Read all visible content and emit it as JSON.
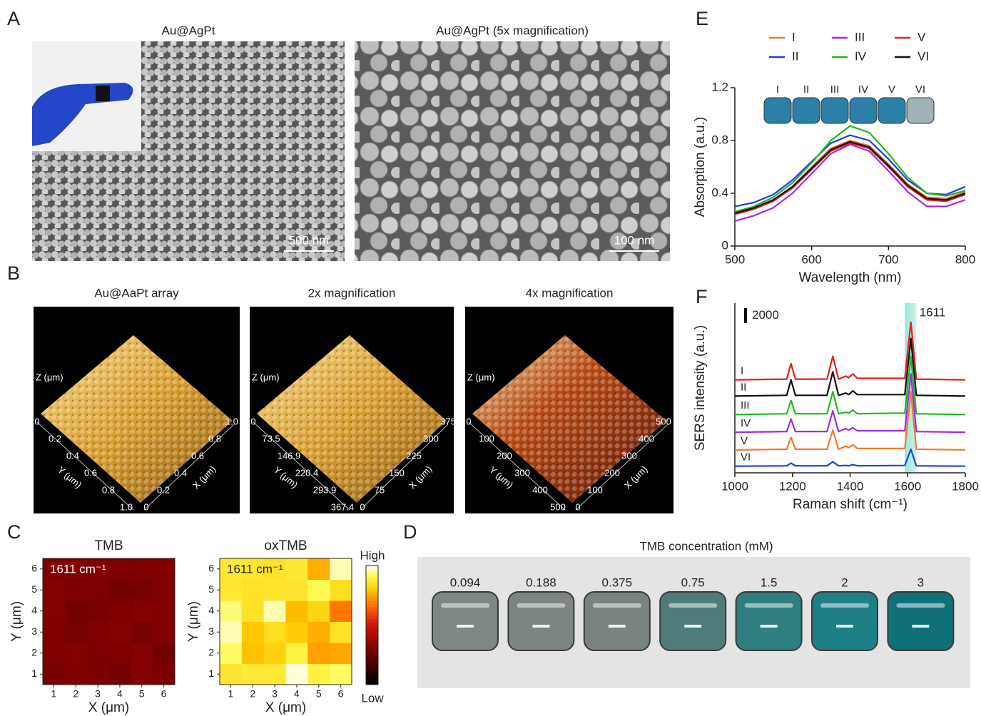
{
  "panels": {
    "A": {
      "label": "A",
      "images": [
        {
          "caption": "Au@AgPt",
          "scale_bar": "500 nm"
        },
        {
          "caption": "Au@AgPt (5x magnification)",
          "scale_bar": "100 nm"
        }
      ]
    },
    "B": {
      "label": "B",
      "images": [
        {
          "caption": "Au@AaPt array",
          "z_label": "Z (μm)",
          "y_label": "Y (μm)",
          "x_label": "X (μm)",
          "y_ticks": [
            "0",
            "0.2",
            "0.4",
            "0.6",
            "0.8",
            "1.0"
          ],
          "x_ticks": [
            "0",
            "0.2",
            "0.4",
            "0.6",
            "0.8",
            "1.0"
          ]
        },
        {
          "caption": "2x magnification",
          "z_label": "Z (μm)",
          "y_label": "Y (μm)",
          "x_label": "X (μm)",
          "y_ticks": [
            "0",
            "73.5",
            "146.9",
            "220.4",
            "293.9",
            "367.4"
          ],
          "x_ticks": [
            "0",
            "75",
            "150",
            "225",
            "300",
            "375"
          ]
        },
        {
          "caption": "4x magnification",
          "z_label": "Z (μm)",
          "y_label": "Y (μm)",
          "x_label": "X (μm)",
          "y_ticks": [
            "0",
            "100",
            "200",
            "300",
            "400",
            "500"
          ],
          "x_ticks": [
            "0",
            "100",
            "200",
            "300",
            "400",
            "500"
          ]
        }
      ]
    },
    "C": {
      "label": "C"
    },
    "D": {
      "label": "D",
      "title": "TMB concentration (mM)",
      "concentrations": [
        "0.094",
        "0.188",
        "0.375",
        "0.75",
        "1.5",
        "2",
        "3"
      ]
    },
    "E": {
      "label": "E"
    },
    "F": {
      "label": "F"
    }
  },
  "chart_data": [
    {
      "type": "line",
      "xlabel": "Wavelength (nm)",
      "ylabel": "Absorption (a.u.)",
      "x": [
        500,
        525,
        550,
        575,
        600,
        625,
        650,
        675,
        700,
        725,
        750,
        775,
        800
      ],
      "xlim": [
        500,
        800
      ],
      "xticks": [
        500,
        600,
        700,
        800
      ],
      "ylim": [
        0,
        1.2
      ],
      "yticks": [
        0,
        0.4,
        0.8,
        1.2
      ],
      "legend": "top",
      "series": [
        {
          "name": "I",
          "color": "#f47a2a",
          "values": [
            0.25,
            0.29,
            0.35,
            0.45,
            0.6,
            0.74,
            0.8,
            0.76,
            0.62,
            0.47,
            0.37,
            0.36,
            0.41
          ]
        },
        {
          "name": "II",
          "color": "#1f3fe0",
          "values": [
            0.3,
            0.33,
            0.39,
            0.5,
            0.64,
            0.78,
            0.84,
            0.8,
            0.66,
            0.5,
            0.4,
            0.39,
            0.45
          ]
        },
        {
          "name": "III",
          "color": "#a22be0",
          "values": [
            0.19,
            0.23,
            0.29,
            0.4,
            0.55,
            0.7,
            0.77,
            0.72,
            0.57,
            0.41,
            0.3,
            0.3,
            0.35
          ]
        },
        {
          "name": "IV",
          "color": "#1fba1f",
          "values": [
            0.26,
            0.3,
            0.37,
            0.48,
            0.63,
            0.8,
            0.91,
            0.86,
            0.7,
            0.52,
            0.4,
            0.38,
            0.42
          ]
        },
        {
          "name": "V",
          "color": "#e81e1e",
          "values": [
            0.24,
            0.28,
            0.34,
            0.44,
            0.58,
            0.72,
            0.78,
            0.74,
            0.6,
            0.45,
            0.35,
            0.34,
            0.39
          ]
        },
        {
          "name": "VI",
          "color": "#111111",
          "values": [
            0.25,
            0.29,
            0.35,
            0.45,
            0.59,
            0.73,
            0.79,
            0.75,
            0.61,
            0.46,
            0.36,
            0.35,
            0.4
          ]
        }
      ]
    },
    {
      "type": "line",
      "xlabel": "Raman shift (cm⁻¹)",
      "ylabel": "SERS intensity (a.u.)",
      "x": [
        1000,
        1180,
        1195,
        1210,
        1320,
        1340,
        1360,
        1385,
        1395,
        1410,
        1425,
        1590,
        1611,
        1630,
        1800
      ],
      "xlim": [
        1000,
        1800
      ],
      "xticks": [
        1000,
        1200,
        1400,
        1600,
        1800
      ],
      "ylim": [
        0,
        23000
      ],
      "scale_bar": 2000,
      "annotation": "1611",
      "highlight": [
        1590,
        1630
      ],
      "series": [
        {
          "name": "I",
          "color": "#e81e1e",
          "values": [
            12600,
            12700,
            14800,
            12700,
            12700,
            15800,
            12700,
            13100,
            12900,
            13400,
            12800,
            12800,
            20400,
            12700,
            12600
          ]
        },
        {
          "name": "II",
          "color": "#111111",
          "values": [
            10400,
            10500,
            12600,
            10500,
            10500,
            13700,
            10500,
            10800,
            10600,
            11100,
            10600,
            10600,
            18200,
            10500,
            10400
          ]
        },
        {
          "name": "III",
          "color": "#1fba1f",
          "values": [
            7900,
            8000,
            9800,
            8000,
            8000,
            11000,
            8000,
            8200,
            8100,
            8500,
            8000,
            8100,
            15800,
            8000,
            7900
          ]
        },
        {
          "name": "IV",
          "color": "#a22be0",
          "values": [
            5500,
            5600,
            7300,
            5600,
            5600,
            8400,
            5600,
            6000,
            5800,
            6100,
            5700,
            5700,
            13400,
            5600,
            5500
          ]
        },
        {
          "name": "V",
          "color": "#f47a2a",
          "values": [
            3100,
            3200,
            4800,
            3200,
            3200,
            5800,
            3200,
            3600,
            3400,
            3800,
            3300,
            3300,
            11000,
            3200,
            3100
          ]
        },
        {
          "name": "VI",
          "color": "#1f3fe0",
          "values": [
            900,
            950,
            1300,
            950,
            950,
            1500,
            950,
            1000,
            950,
            1100,
            950,
            1000,
            3200,
            950,
            900
          ]
        }
      ]
    },
    {
      "type": "heatmap",
      "title": "TMB",
      "annotation": "1611 cm⁻¹",
      "xlabel": "X (μm)",
      "ylabel": "Y (μm)",
      "xlim": [
        0.5,
        6.5
      ],
      "ylim": [
        0.5,
        6.5
      ],
      "xticks": [
        1,
        2,
        3,
        4,
        5,
        6
      ],
      "yticks": [
        1,
        2,
        3,
        4,
        5,
        6
      ],
      "z": [
        [
          0.28,
          0.3,
          0.29,
          0.27,
          0.31,
          0.29
        ],
        [
          0.3,
          0.31,
          0.29,
          0.3,
          0.31,
          0.27
        ],
        [
          0.3,
          0.28,
          0.3,
          0.31,
          0.28,
          0.3
        ],
        [
          0.31,
          0.27,
          0.28,
          0.3,
          0.31,
          0.3
        ],
        [
          0.31,
          0.29,
          0.29,
          0.27,
          0.28,
          0.3
        ],
        [
          0.3,
          0.31,
          0.3,
          0.29,
          0.3,
          0.3
        ]
      ]
    },
    {
      "type": "heatmap",
      "title": "oxTMB",
      "annotation": "1611 cm⁻¹",
      "xlabel": "X (μm)",
      "ylabel": "Y (μm)",
      "xlim": [
        0.5,
        6.5
      ],
      "ylim": [
        0.5,
        6.5
      ],
      "xticks": [
        1,
        2,
        3,
        4,
        5,
        6
      ],
      "yticks": [
        1,
        2,
        3,
        4,
        5,
        6
      ],
      "colorbar": {
        "high": "High",
        "low": "Low"
      },
      "z": [
        [
          0.87,
          0.88,
          0.88,
          0.99,
          0.9,
          0.93
        ],
        [
          0.93,
          0.79,
          0.82,
          0.9,
          0.74,
          0.75
        ],
        [
          0.97,
          0.8,
          0.85,
          0.81,
          0.76,
          0.86
        ],
        [
          0.94,
          0.86,
          0.97,
          0.78,
          0.83,
          0.68
        ],
        [
          0.88,
          0.86,
          0.87,
          0.87,
          0.92,
          0.85
        ],
        [
          0.88,
          0.87,
          0.86,
          0.88,
          0.76,
          0.97
        ]
      ]
    }
  ]
}
